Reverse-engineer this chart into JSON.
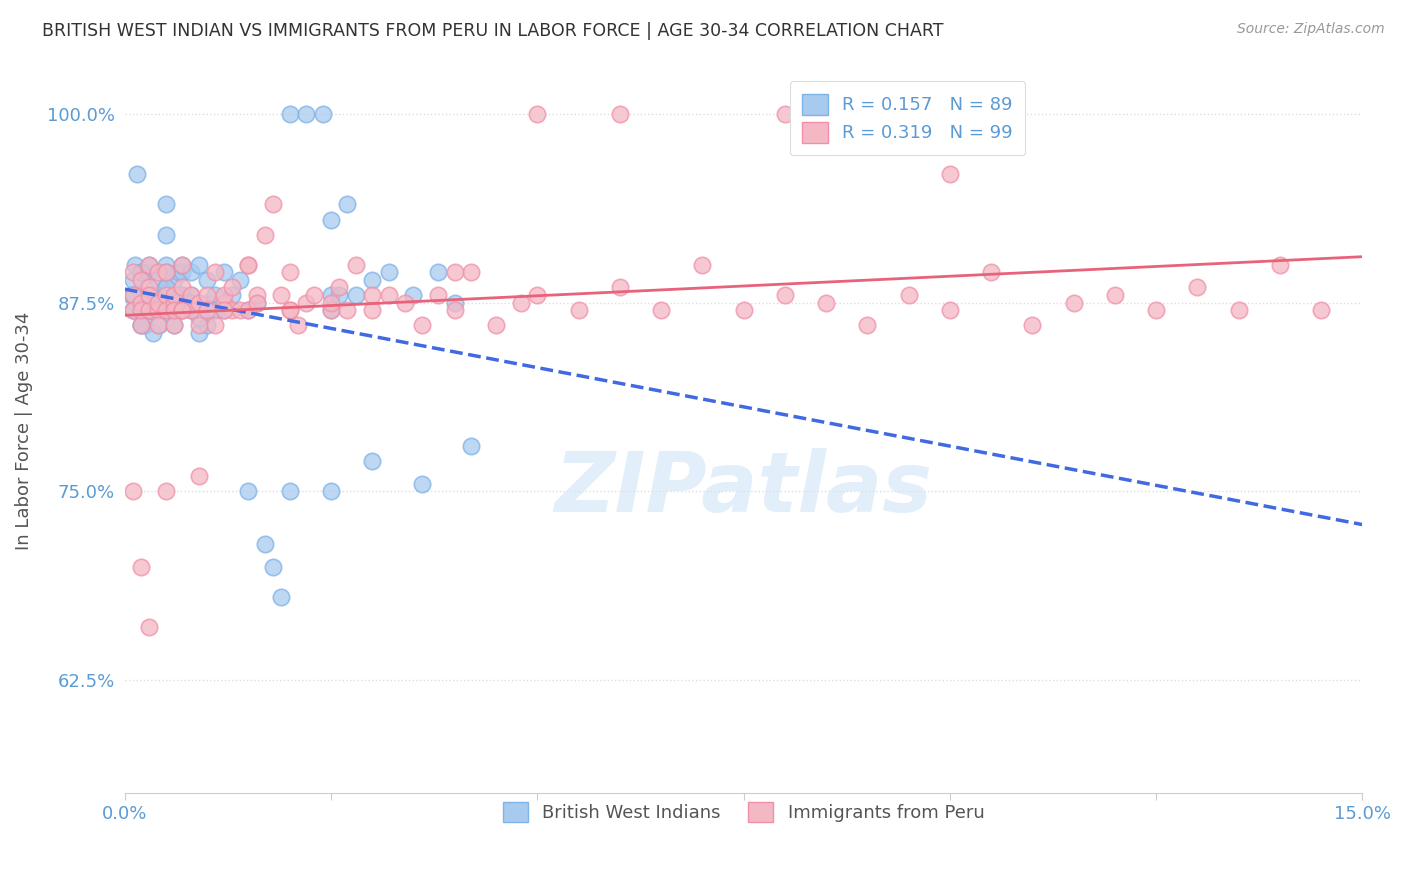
{
  "title": "BRITISH WEST INDIAN VS IMMIGRANTS FROM PERU IN LABOR FORCE | AGE 30-34 CORRELATION CHART",
  "source_text": "Source: ZipAtlas.com",
  "ylabel": "In Labor Force | Age 30-34",
  "xlim": [
    0.0,
    0.15
  ],
  "ylim": [
    0.55,
    1.03
  ],
  "xticks": [
    0.0,
    0.025,
    0.05,
    0.075,
    0.1,
    0.125,
    0.15
  ],
  "xticklabels": [
    "0.0%",
    "",
    "",
    "",
    "",
    "",
    "15.0%"
  ],
  "yticks": [
    0.625,
    0.75,
    0.875,
    1.0
  ],
  "yticklabels": [
    "62.5%",
    "75.0%",
    "87.5%",
    "100.0%"
  ],
  "watermark": "ZIPatlas",
  "legend_blue_r": "0.157",
  "legend_blue_n": "89",
  "legend_pink_r": "0.319",
  "legend_pink_n": "99",
  "legend_label_blue": "British West Indians",
  "legend_label_pink": "Immigrants from Peru",
  "blue_fill": "#A8CAEE",
  "blue_edge": "#7EB3E8",
  "pink_fill": "#F4B8C4",
  "pink_edge": "#F090A8",
  "blue_line_color": "#4169E1",
  "pink_line_color": "#E8627A",
  "axis_color": "#5B9BD5",
  "blue_scatter_x": [
    0.0008,
    0.001,
    0.001,
    0.0012,
    0.0015,
    0.002,
    0.002,
    0.002,
    0.0022,
    0.0025,
    0.003,
    0.003,
    0.003,
    0.003,
    0.003,
    0.0032,
    0.0035,
    0.004,
    0.004,
    0.004,
    0.004,
    0.0042,
    0.005,
    0.005,
    0.005,
    0.005,
    0.005,
    0.0052,
    0.006,
    0.006,
    0.006,
    0.006,
    0.0065,
    0.007,
    0.007,
    0.007,
    0.007,
    0.008,
    0.008,
    0.008,
    0.009,
    0.009,
    0.01,
    0.01,
    0.01,
    0.011,
    0.011,
    0.012,
    0.012,
    0.013,
    0.014,
    0.015,
    0.016,
    0.017,
    0.018,
    0.019,
    0.02,
    0.022,
    0.024,
    0.025,
    0.025,
    0.025,
    0.026,
    0.027,
    0.028,
    0.03,
    0.03,
    0.032,
    0.035,
    0.036,
    0.038,
    0.04,
    0.042,
    0.001,
    0.001,
    0.002,
    0.002,
    0.003,
    0.004,
    0.004,
    0.005,
    0.005,
    0.006,
    0.007,
    0.008,
    0.009,
    0.015,
    0.02,
    0.025
  ],
  "blue_scatter_y": [
    0.88,
    0.89,
    0.87,
    0.9,
    0.96,
    0.86,
    0.88,
    0.895,
    0.87,
    0.86,
    0.88,
    0.87,
    0.895,
    0.9,
    0.88,
    0.87,
    0.855,
    0.875,
    0.88,
    0.89,
    0.875,
    0.86,
    0.885,
    0.9,
    0.87,
    0.92,
    0.94,
    0.87,
    0.89,
    0.875,
    0.86,
    0.87,
    0.895,
    0.88,
    0.87,
    0.895,
    0.9,
    0.895,
    0.87,
    0.88,
    0.855,
    0.9,
    0.89,
    0.875,
    0.86,
    0.88,
    0.87,
    0.895,
    0.87,
    0.88,
    0.89,
    0.87,
    0.875,
    0.715,
    0.7,
    0.68,
    1.0,
    1.0,
    1.0,
    0.88,
    0.93,
    0.75,
    0.88,
    0.94,
    0.88,
    0.89,
    0.77,
    0.895,
    0.88,
    0.755,
    0.895,
    0.875,
    0.78,
    0.88,
    0.87,
    0.895,
    0.86,
    0.87,
    0.88,
    0.87,
    0.885,
    0.895,
    0.87,
    0.88,
    0.875,
    0.865,
    0.75,
    0.75,
    0.87
  ],
  "pink_scatter_x": [
    0.001,
    0.001,
    0.001,
    0.002,
    0.002,
    0.002,
    0.002,
    0.003,
    0.003,
    0.003,
    0.003,
    0.004,
    0.004,
    0.004,
    0.004,
    0.005,
    0.005,
    0.005,
    0.006,
    0.006,
    0.006,
    0.006,
    0.007,
    0.007,
    0.007,
    0.008,
    0.008,
    0.009,
    0.009,
    0.01,
    0.01,
    0.011,
    0.011,
    0.012,
    0.012,
    0.013,
    0.013,
    0.014,
    0.015,
    0.015,
    0.016,
    0.016,
    0.017,
    0.018,
    0.019,
    0.02,
    0.02,
    0.021,
    0.022,
    0.023,
    0.025,
    0.026,
    0.027,
    0.028,
    0.03,
    0.032,
    0.034,
    0.036,
    0.038,
    0.04,
    0.042,
    0.045,
    0.048,
    0.05,
    0.055,
    0.06,
    0.065,
    0.07,
    0.075,
    0.08,
    0.085,
    0.09,
    0.095,
    0.1,
    0.105,
    0.11,
    0.115,
    0.12,
    0.125,
    0.13,
    0.135,
    0.14,
    0.145,
    0.001,
    0.002,
    0.003,
    0.005,
    0.007,
    0.009,
    0.012,
    0.015,
    0.02,
    0.025,
    0.03,
    0.04,
    0.05,
    0.06,
    0.08,
    0.1
  ],
  "pink_scatter_y": [
    0.88,
    0.87,
    0.895,
    0.86,
    0.875,
    0.89,
    0.87,
    0.885,
    0.87,
    0.9,
    0.88,
    0.87,
    0.895,
    0.86,
    0.875,
    0.88,
    0.87,
    0.895,
    0.86,
    0.875,
    0.88,
    0.87,
    0.885,
    0.87,
    0.9,
    0.87,
    0.88,
    0.875,
    0.86,
    0.88,
    0.87,
    0.895,
    0.86,
    0.875,
    0.88,
    0.87,
    0.885,
    0.87,
    0.9,
    0.87,
    0.88,
    0.875,
    0.92,
    0.94,
    0.88,
    0.87,
    0.895,
    0.86,
    0.875,
    0.88,
    0.87,
    0.885,
    0.87,
    0.9,
    0.87,
    0.88,
    0.875,
    0.86,
    0.88,
    0.87,
    0.895,
    0.86,
    0.875,
    0.88,
    0.87,
    0.885,
    0.87,
    0.9,
    0.87,
    0.88,
    0.875,
    0.86,
    0.88,
    0.87,
    0.895,
    0.86,
    0.875,
    0.88,
    0.87,
    0.885,
    0.87,
    0.9,
    0.87,
    0.75,
    0.7,
    0.66,
    0.75,
    0.87,
    0.76,
    0.87,
    0.9,
    0.87,
    0.875,
    0.88,
    0.895,
    1.0,
    1.0,
    1.0,
    0.96
  ]
}
